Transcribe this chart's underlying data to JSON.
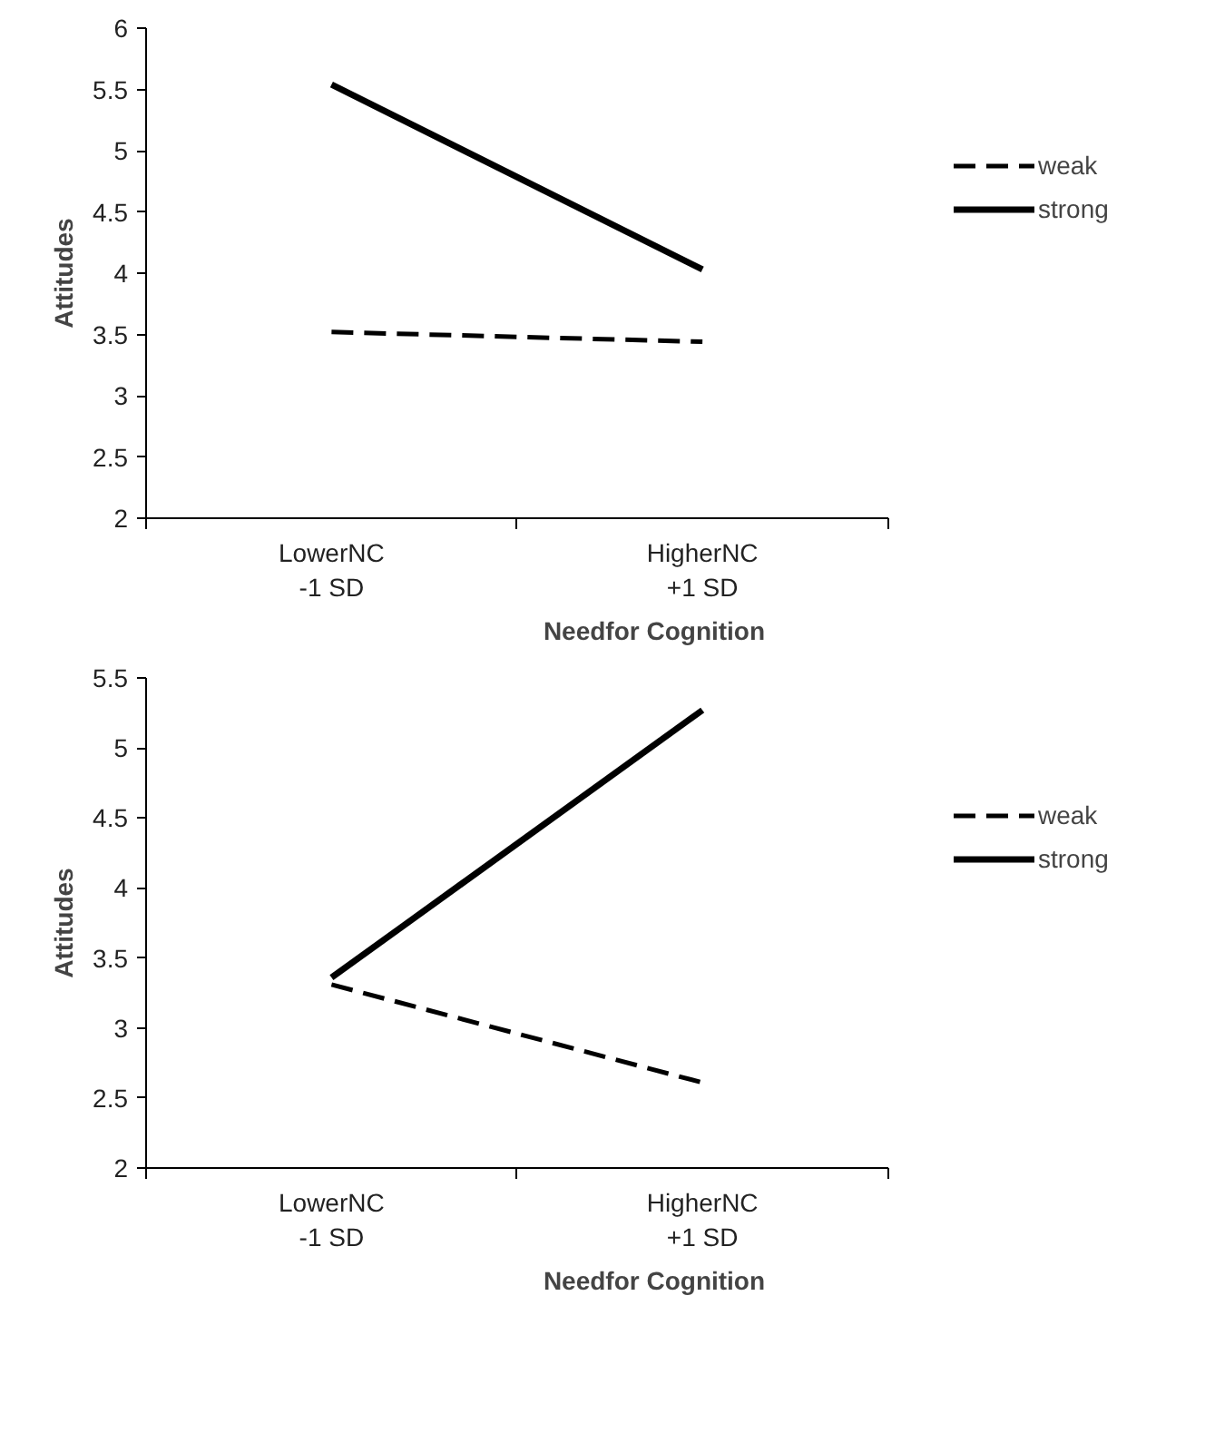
{
  "chart_data": [
    {
      "type": "line",
      "xlabel": "Needfor Cognition",
      "ylabel": "Attitudes",
      "categories": [
        "LowerNC\n-1 SD",
        "HigherNC\n+1 SD"
      ],
      "ylim": [
        2,
        6
      ],
      "yticks": [
        2,
        2.5,
        3,
        3.5,
        4,
        4.5,
        5,
        5.5,
        6
      ],
      "grid": false,
      "legend": "right",
      "marker": "none",
      "series": [
        {
          "name": "weak",
          "color": "#000000",
          "line_style": "dashed",
          "values": [
            3.52,
            3.44
          ]
        },
        {
          "name": "strong",
          "color": "#000000",
          "line_style": "solid",
          "values": [
            5.54,
            4.03
          ]
        }
      ]
    },
    {
      "type": "line",
      "xlabel": "Needfor Cognition",
      "ylabel": "Attitudes",
      "categories": [
        "LowerNC\n-1 SD",
        "HigherNC\n+1 SD"
      ],
      "ylim": [
        2,
        5.5
      ],
      "yticks": [
        2,
        2.5,
        3,
        3.5,
        4,
        4.5,
        5,
        5.5
      ],
      "grid": false,
      "legend": "right",
      "marker": "none",
      "series": [
        {
          "name": "weak",
          "color": "#000000",
          "line_style": "dashed",
          "values": [
            3.31,
            2.61
          ]
        },
        {
          "name": "strong",
          "color": "#000000",
          "line_style": "solid",
          "values": [
            3.36,
            5.27
          ]
        }
      ]
    }
  ]
}
